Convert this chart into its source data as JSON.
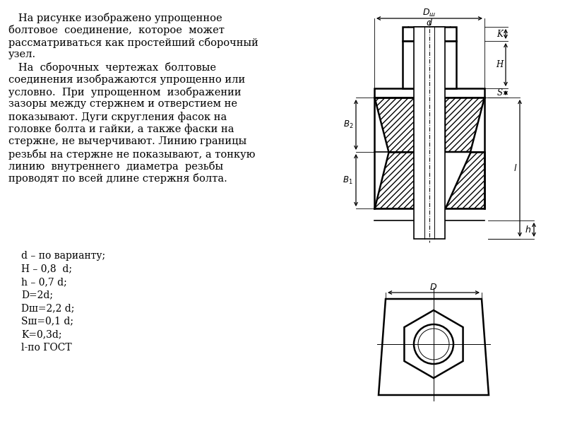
{
  "text_left": [
    "   На рисунке изображено упрощенное",
    "болтовое  соединение,  которое  может",
    "рассматриваться как простейший сборочный",
    "узел.",
    "   На  сборочных  чертежах  болтовые",
    "соединения изображаются упрощенно или",
    "условно.  При  упрощенном  изображении",
    "зазоры между стержнем и отверстием не",
    "показывают. Дуги скругления фасок на",
    "головке болта и гайки, а также фаски на",
    "стержне, не вычерчивают. Линию границы",
    "резьбы на стержне не показывают, а тонкую",
    "линию  внутреннего  диаметра  резьбы",
    "проводят по всей длине стержня болта."
  ],
  "text_params": [
    "d – по варианту;",
    "H – 0,8  d;",
    "h – 0,7 d;",
    "D=2d;",
    "Dш=2,2 d;",
    "Sш=0,1 d;",
    "K=0,3d;",
    "l-по ГОСТ"
  ],
  "bg_color": "#ffffff",
  "line_color": "#000000",
  "text_color": "#000000",
  "font_size_main": 10.5,
  "font_size_params": 10.0
}
